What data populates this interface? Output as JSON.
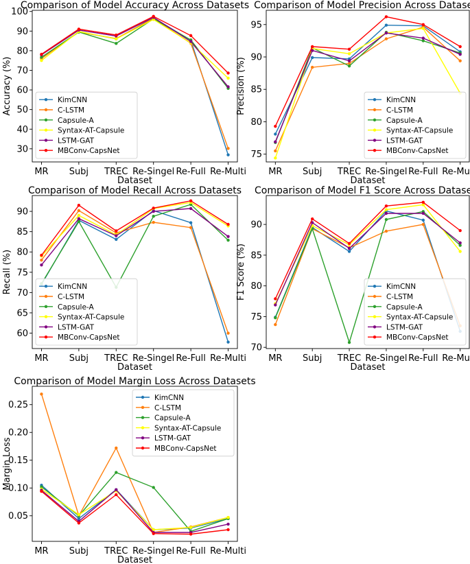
{
  "figure": {
    "xlabel": "Dataset",
    "categories": [
      "MR",
      "Subj",
      "TREC",
      "Re-Singel",
      "Re-Full",
      "Re-Multi"
    ],
    "series_names": [
      "KimCNN",
      "C-LSTM",
      "Capsule-A",
      "Syntax-AT-Capsule",
      "LSTM-GAT",
      "MBConv-CapsNet"
    ],
    "series_colors": [
      "#1f77b4",
      "#ff7f0e",
      "#2ca02c",
      "#ffff00",
      "#800080",
      "#ff0000"
    ]
  },
  "chart_data": [
    {
      "type": "line",
      "title": "Comparison of Model Accuracy Across Datasets",
      "xlabel": "Dataset",
      "ylabel": "Accuracy (%)",
      "ylim": [
        23.3,
        100.6
      ],
      "yticks": [
        30,
        40,
        50,
        60,
        70,
        80,
        90,
        100
      ],
      "legend": "bottom-left",
      "series": [
        {
          "name": "KimCNN",
          "values": [
            76.5,
            89.6,
            86.0,
            96.8,
            85.3,
            26.9
          ]
        },
        {
          "name": "C-LSTM",
          "values": [
            76.0,
            89.5,
            86.2,
            96.5,
            83.8,
            30.2
          ]
        },
        {
          "name": "Capsule-A",
          "values": [
            76.7,
            89.5,
            83.7,
            96.2,
            85.5,
            60.8
          ]
        },
        {
          "name": "Syntax-AT-Capsule",
          "values": [
            75.0,
            89.8,
            86.0,
            95.9,
            84.0,
            66.0
          ]
        },
        {
          "name": "LSTM-GAT",
          "values": [
            77.9,
            90.5,
            87.5,
            97.0,
            84.7,
            61.6
          ]
        },
        {
          "name": "MBConv-CapsNet",
          "values": [
            78.2,
            91.0,
            88.0,
            97.5,
            87.7,
            68.6
          ]
        }
      ]
    },
    {
      "type": "line",
      "title": "Comparison of Model Precision Across Datasets",
      "xlabel": "Dataset",
      "ylabel": "Precision (%)",
      "ylim": [
        73.8,
        97.2
      ],
      "yticks": [
        75,
        80,
        85,
        90,
        95
      ],
      "legend": "bottom-right",
      "series": [
        {
          "name": "KimCNN",
          "values": [
            78.1,
            89.9,
            89.7,
            94.9,
            94.8,
            90.8
          ]
        },
        {
          "name": "C-LSTM",
          "values": [
            75.5,
            88.4,
            89.0,
            92.8,
            94.6,
            89.4
          ]
        },
        {
          "name": "Capsule-A",
          "values": [
            76.8,
            91.4,
            88.6,
            93.8,
            92.5,
            90.6
          ]
        },
        {
          "name": "Syntax-AT-Capsule",
          "values": [
            74.4,
            91.3,
            90.5,
            93.7,
            94.4,
            84.4
          ]
        },
        {
          "name": "LSTM-GAT",
          "values": [
            76.9,
            91.0,
            89.4,
            93.7,
            92.9,
            90.4
          ]
        },
        {
          "name": "MBConv-CapsNet",
          "values": [
            79.3,
            91.6,
            91.2,
            96.2,
            95.0,
            91.6
          ]
        }
      ]
    },
    {
      "type": "line",
      "title": "Comparison of Model Recall Across Datasets",
      "xlabel": "Dataset",
      "ylabel": "Recall (%)",
      "ylim": [
        56.2,
        93.9
      ],
      "yticks": [
        60,
        65,
        70,
        75,
        80,
        85,
        90
      ],
      "legend": "bottom-left",
      "series": [
        {
          "name": "KimCNN",
          "values": [
            72.0,
            87.8,
            83.1,
            90.2,
            87.2,
            57.8
          ]
        },
        {
          "name": "C-LSTM",
          "values": [
            78.0,
            90.2,
            84.7,
            87.3,
            86.0,
            60.0
          ]
        },
        {
          "name": "Capsule-A",
          "values": [
            72.2,
            87.5,
            71.3,
            88.8,
            91.7,
            82.9
          ]
        },
        {
          "name": "Syntax-AT-Capsule",
          "values": [
            79.0,
            89.0,
            84.2,
            90.7,
            92.2,
            86.4
          ]
        },
        {
          "name": "LSTM-GAT",
          "values": [
            76.8,
            88.2,
            84.0,
            90.0,
            90.7,
            83.8
          ]
        },
        {
          "name": "MBConv-CapsNet",
          "values": [
            79.2,
            91.5,
            85.2,
            90.8,
            92.6,
            86.8
          ]
        }
      ]
    },
    {
      "type": "line",
      "title": "Comparison of Model F1 Score Across Datasets",
      "xlabel": "Dataset",
      "ylabel": "F1 Score (%)",
      "ylim": [
        69.8,
        94.7
      ],
      "yticks": [
        70,
        75,
        80,
        85,
        90
      ],
      "legend": "bottom-right",
      "series": [
        {
          "name": "KimCNN",
          "values": [
            74.9,
            89.5,
            85.6,
            92.2,
            90.7,
            72.6
          ]
        },
        {
          "name": "C-LSTM",
          "values": [
            73.7,
            89.3,
            86.2,
            88.9,
            90.0,
            73.5
          ]
        },
        {
          "name": "Capsule-A",
          "values": [
            74.8,
            89.3,
            70.8,
            90.8,
            92.1,
            86.6
          ]
        },
        {
          "name": "Syntax-AT-Capsule",
          "values": [
            77.1,
            89.8,
            86.7,
            92.4,
            93.2,
            85.6
          ]
        },
        {
          "name": "LSTM-GAT",
          "values": [
            76.9,
            90.3,
            86.1,
            91.8,
            91.8,
            87.0
          ]
        },
        {
          "name": "MBConv-CapsNet",
          "values": [
            77.9,
            90.9,
            86.9,
            93.0,
            93.6,
            89.0
          ]
        }
      ]
    },
    {
      "type": "line",
      "title": "Comparison of Model Margin Loss Across Datasets",
      "xlabel": "Dataset",
      "ylabel": "Margin Loss",
      "ylim": [
        0.004,
        0.283
      ],
      "yticks": [
        0.05,
        0.1,
        0.15,
        0.2,
        0.25
      ],
      "ytick_labels": [
        "0.05",
        "0.10",
        "0.15",
        "0.20",
        "0.25"
      ],
      "legend": "top-right",
      "series": [
        {
          "name": "KimCNN",
          "values": [
            0.105,
            0.045,
            0.097,
            0.025,
            0.028,
            0.045
          ]
        },
        {
          "name": "C-LSTM",
          "values": [
            0.269,
            0.05,
            0.172,
            0.02,
            0.03,
            0.047
          ]
        },
        {
          "name": "Capsule-A",
          "values": [
            0.102,
            0.05,
            0.128,
            0.101,
            0.022,
            0.045
          ]
        },
        {
          "name": "Syntax-AT-Capsule",
          "values": [
            0.098,
            0.052,
            0.095,
            0.025,
            0.029,
            0.047
          ]
        },
        {
          "name": "LSTM-GAT",
          "values": [
            0.096,
            0.04,
            0.097,
            0.02,
            0.02,
            0.035
          ]
        },
        {
          "name": "MBConv-CapsNet",
          "values": [
            0.094,
            0.037,
            0.088,
            0.018,
            0.017,
            0.025
          ]
        }
      ]
    }
  ]
}
